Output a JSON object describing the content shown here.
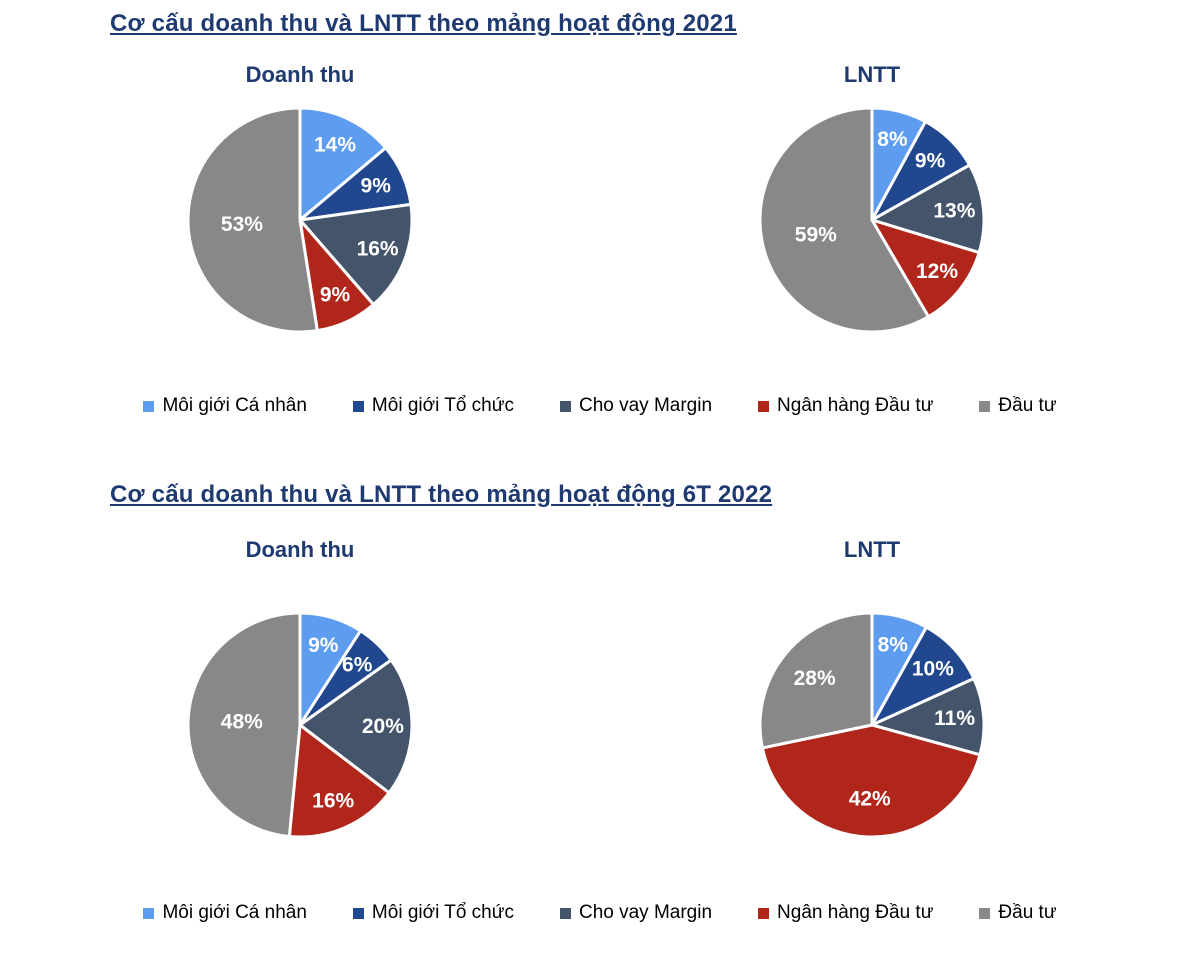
{
  "page": {
    "background": "#FFFFFF",
    "title_color": "#1F3A70",
    "slice_label_color": "#FFFFFF"
  },
  "palette": {
    "light_blue": "#5E9CEF",
    "dark_blue": "#21478E",
    "slate": "#44546A",
    "red": "#B1261B",
    "gray": "#888888"
  },
  "legend": {
    "items": [
      {
        "label": "Môi giới Cá nhân",
        "color": "#5E9CEF"
      },
      {
        "label": "Môi giới Tổ chức",
        "color": "#21478E"
      },
      {
        "label": "Cho vay Margin",
        "color": "#44546A"
      },
      {
        "label": "Ngân hàng Đầu tư",
        "color": "#B1261B"
      },
      {
        "label": "Đầu tư",
        "color": "#888888"
      }
    ]
  },
  "sections": [
    {
      "title": "Cơ cấu doanh thu và LNTT theo mảng hoạt động 2021"
    },
    {
      "title": "Cơ cấu doanh thu và LNTT theo mảng hoạt động 6T 2022"
    }
  ],
  "chart_data": [
    {
      "type": "pie",
      "group": "2021",
      "title": "Doanh thu",
      "categories": [
        "Môi giới Cá nhân",
        "Môi giới Tổ chức",
        "Cho vay Margin",
        "Ngân hàng Đầu tư",
        "Đầu tư"
      ],
      "values": [
        14,
        9,
        16,
        9,
        53
      ],
      "labels": [
        "14%",
        "9%",
        "16%",
        "9%",
        "53%"
      ],
      "unit": "%",
      "colors": [
        "#5E9CEF",
        "#21478E",
        "#44546A",
        "#B1261B",
        "#888888"
      ],
      "start_angle": "12-oclock",
      "direction": "clockwise",
      "legend_position": "bottom"
    },
    {
      "type": "pie",
      "group": "2021",
      "title": "LNTT",
      "categories": [
        "Môi giới Cá nhân",
        "Môi giới Tổ chức",
        "Cho vay Margin",
        "Ngân hàng Đầu tư",
        "Đầu tư"
      ],
      "values": [
        8,
        9,
        13,
        12,
        59
      ],
      "labels": [
        "8%",
        "9%",
        "13%",
        "12%",
        "59%"
      ],
      "unit": "%",
      "colors": [
        "#5E9CEF",
        "#21478E",
        "#44546A",
        "#B1261B",
        "#888888"
      ],
      "start_angle": "12-oclock",
      "direction": "clockwise",
      "legend_position": "bottom"
    },
    {
      "type": "pie",
      "group": "6T 2022",
      "title": "Doanh thu",
      "categories": [
        "Môi giới Cá nhân",
        "Môi giới Tổ chức",
        "Cho vay Margin",
        "Ngân hàng Đầu tư",
        "Đầu tư"
      ],
      "values": [
        9,
        6,
        20,
        16,
        48
      ],
      "labels": [
        "9%",
        "6%",
        "20%",
        "16%",
        "48%"
      ],
      "unit": "%",
      "colors": [
        "#5E9CEF",
        "#21478E",
        "#44546A",
        "#B1261B",
        "#888888"
      ],
      "start_angle": "12-oclock",
      "direction": "clockwise",
      "legend_position": "bottom"
    },
    {
      "type": "pie",
      "group": "6T 2022",
      "title": "LNTT",
      "categories": [
        "Môi giới Cá nhân",
        "Môi giới Tổ chức",
        "Cho vay Margin",
        "Ngân hàng Đầu tư",
        "Đầu tư"
      ],
      "values": [
        8,
        10,
        11,
        42,
        28
      ],
      "labels": [
        "8%",
        "10%",
        "11%",
        "42%",
        "28%"
      ],
      "unit": "%",
      "colors": [
        "#5E9CEF",
        "#21478E",
        "#44546A",
        "#B1261B",
        "#888888"
      ],
      "start_angle": "12-oclock",
      "direction": "clockwise",
      "legend_position": "bottom"
    }
  ]
}
